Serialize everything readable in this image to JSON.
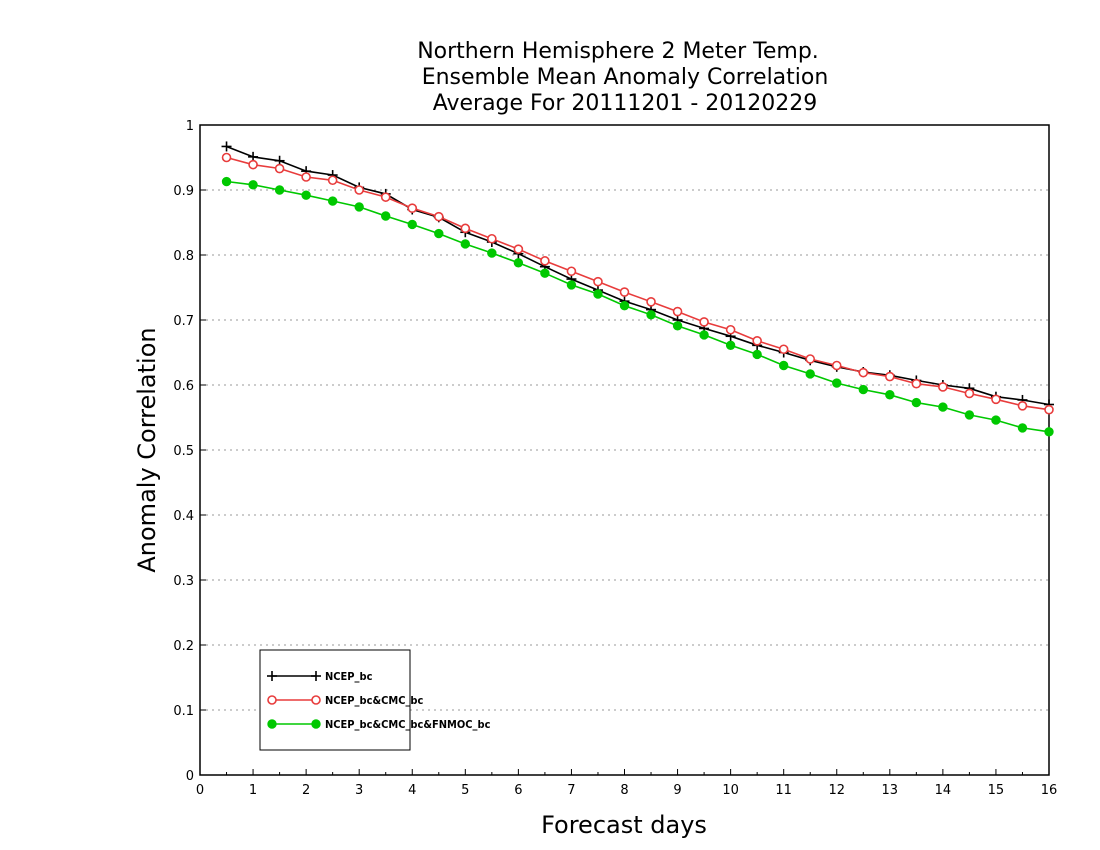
{
  "chart_data": {
    "type": "line",
    "title_lines": [
      "Northern Hemisphere 2 Meter Temp.",
      "Ensemble Mean Anomaly Correlation",
      "Average For 20111201 - 20120229"
    ],
    "xlabel": "Forecast days",
    "ylabel": "Anomaly Correlation",
    "xlim": [
      0,
      16
    ],
    "ylim": [
      0,
      1
    ],
    "x_ticks": [
      0,
      1,
      2,
      3,
      4,
      5,
      6,
      7,
      8,
      9,
      10,
      11,
      12,
      13,
      14,
      15,
      16
    ],
    "y_ticks": [
      0,
      0.1,
      0.2,
      0.3,
      0.4,
      0.5,
      0.6,
      0.7,
      0.8,
      0.9,
      1
    ],
    "y_grid": "dotted",
    "legend_position": "bottom-left",
    "x": [
      0.5,
      1,
      1.5,
      2,
      2.5,
      3,
      3.5,
      4,
      4.5,
      5,
      5.5,
      6,
      6.5,
      7,
      7.5,
      8,
      8.5,
      9,
      9.5,
      10,
      10.5,
      11,
      11.5,
      12,
      12.5,
      13,
      13.5,
      14,
      14.5,
      15,
      15.5,
      16
    ],
    "series": [
      {
        "name": "NCEP_bc",
        "color": "#000000",
        "marker": "plus",
        "values": [
          0.967,
          0.951,
          0.945,
          0.929,
          0.923,
          0.904,
          0.894,
          0.87,
          0.858,
          0.835,
          0.82,
          0.802,
          0.782,
          0.763,
          0.746,
          0.729,
          0.716,
          0.7,
          0.687,
          0.675,
          0.661,
          0.65,
          0.638,
          0.628,
          0.62,
          0.615,
          0.607,
          0.6,
          0.595,
          0.582,
          0.577,
          0.57
        ]
      },
      {
        "name": "NCEP_bc&CMC_bc",
        "color": "#e83c3c",
        "marker": "open-circle",
        "values": [
          0.95,
          0.939,
          0.933,
          0.92,
          0.915,
          0.9,
          0.889,
          0.872,
          0.859,
          0.841,
          0.825,
          0.809,
          0.791,
          0.775,
          0.759,
          0.743,
          0.728,
          0.713,
          0.697,
          0.685,
          0.668,
          0.655,
          0.64,
          0.63,
          0.619,
          0.613,
          0.602,
          0.597,
          0.587,
          0.578,
          0.568,
          0.562
        ]
      },
      {
        "name": "NCEP_bc&CMC_bc&FNMOC_bc",
        "color": "#00c800",
        "marker": "filled-circle",
        "values": [
          0.913,
          0.908,
          0.9,
          0.892,
          0.883,
          0.874,
          0.86,
          0.847,
          0.833,
          0.817,
          0.803,
          0.788,
          0.772,
          0.754,
          0.74,
          0.722,
          0.708,
          0.691,
          0.677,
          0.661,
          0.647,
          0.63,
          0.617,
          0.603,
          0.593,
          0.585,
          0.573,
          0.566,
          0.554,
          0.546,
          0.534,
          0.528
        ]
      }
    ]
  }
}
